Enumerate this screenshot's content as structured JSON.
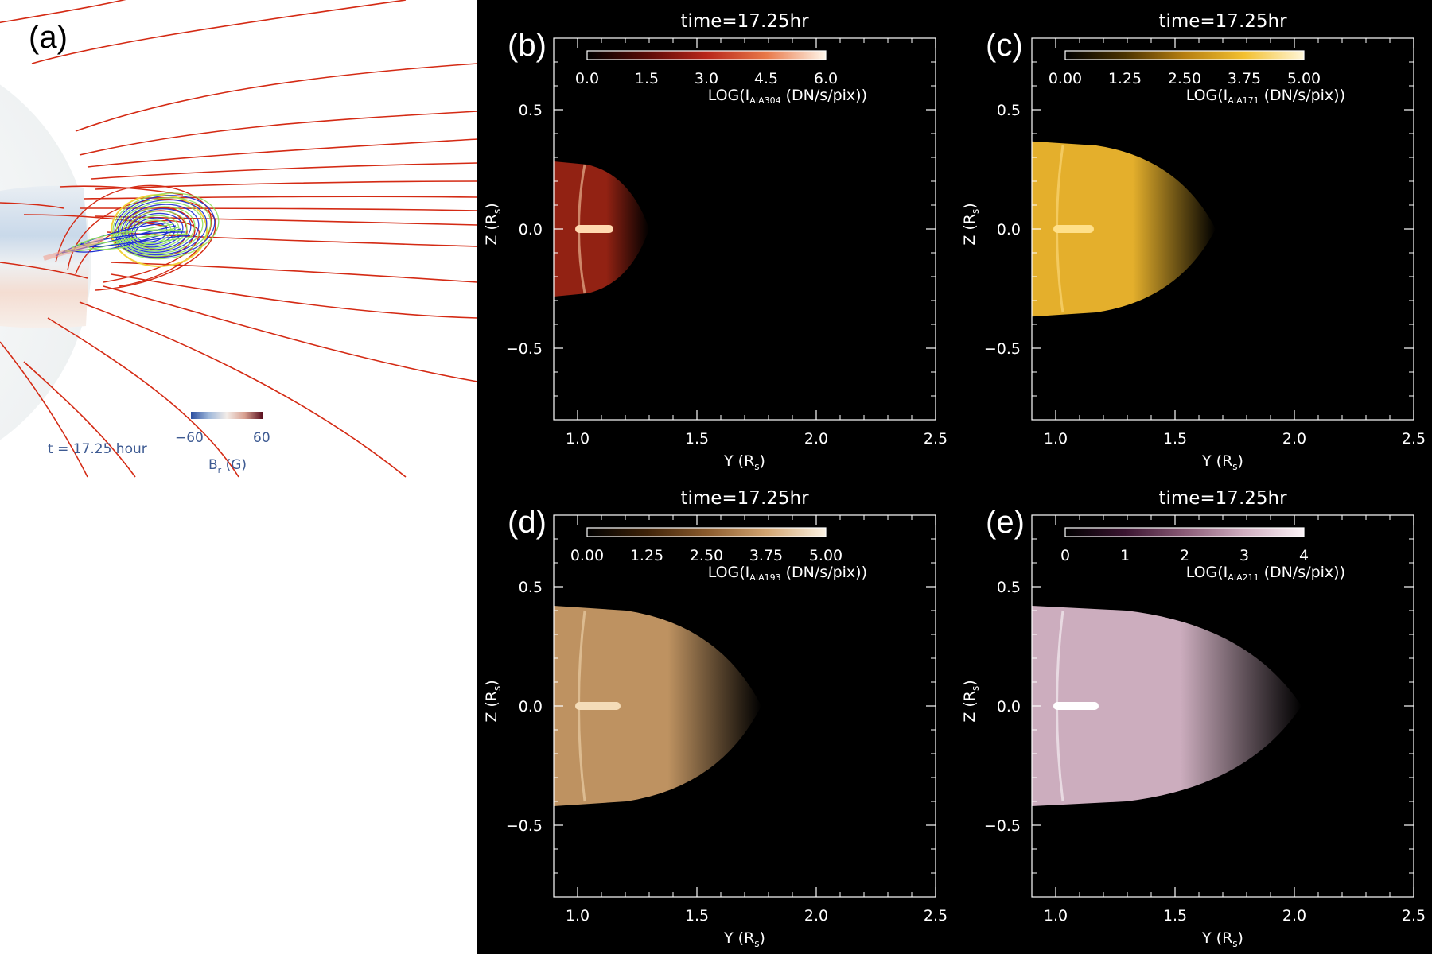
{
  "panel_a": {
    "label": "(a)",
    "time_text": "t = 17.25 hour",
    "colorbar": {
      "min_label": "−60",
      "max_label": "60",
      "title": "B",
      "title_sub": "r",
      "title_unit": " (G)",
      "colors": [
        "#2c4fa0",
        "#9fb8da",
        "#f2ece8",
        "#d8a090",
        "#5a0f1e"
      ]
    },
    "fieldline_color": "#d42a14",
    "rope_colors": [
      "#1c2fd0",
      "#8de05a",
      "#f1d13a"
    ]
  },
  "panels": [
    {
      "id": "b",
      "label": "(b)",
      "title": "time=17.25hr",
      "channel": "AIA304",
      "cbar_ticks": [
        "0.0",
        "1.5",
        "3.0",
        "4.5",
        "6.0"
      ],
      "cbar_colors": [
        "#000000",
        "#5a0a06",
        "#b8261a",
        "#e87848",
        "#fff6ea"
      ],
      "emission": {
        "extent_y": 1.3,
        "halfwidth_z": 0.27,
        "core_y": 1.15,
        "peak_color": "#9a2414",
        "core_color": "#ffd9b0"
      }
    },
    {
      "id": "c",
      "label": "(c)",
      "title": "time=17.25hr",
      "channel": "AIA171",
      "cbar_ticks": [
        "0.00",
        "1.25",
        "2.50",
        "3.75",
        "5.00"
      ],
      "cbar_colors": [
        "#000000",
        "#4a3200",
        "#b67f10",
        "#f3c030",
        "#fff6d8"
      ],
      "emission": {
        "extent_y": 1.67,
        "halfwidth_z": 0.35,
        "core_y": 1.16,
        "peak_color": "#f0b82e",
        "core_color": "#ffe08a"
      }
    },
    {
      "id": "d",
      "label": "(d)",
      "title": "time=17.25hr",
      "channel": "AIA193",
      "cbar_ticks": [
        "0.00",
        "1.25",
        "2.50",
        "3.75",
        "5.00"
      ],
      "cbar_colors": [
        "#000000",
        "#3e2208",
        "#8a5a2c",
        "#d2a470",
        "#fbf2e2"
      ],
      "emission": {
        "extent_y": 1.77,
        "halfwidth_z": 0.4,
        "core_y": 1.18,
        "peak_color": "#c89a66",
        "core_color": "#f4dcb8"
      }
    },
    {
      "id": "e",
      "label": "(e)",
      "title": "time=17.25hr",
      "channel": "AIA211",
      "cbar_ticks": [
        "0",
        "1",
        "2",
        "3",
        "4"
      ],
      "cbar_colors": [
        "#000000",
        "#3a1430",
        "#8a5a76",
        "#d0aec0",
        "#fdf4f8"
      ],
      "emission": {
        "extent_y": 2.03,
        "halfwidth_z": 0.4,
        "core_y": 1.18,
        "peak_color": "#d7b6c8",
        "core_color": "#ffffff"
      }
    }
  ],
  "axes": {
    "xlabel": "Y (R",
    "xlabel_sub": "s",
    "xlabel_end": ")",
    "ylabel": "Z (R",
    "ylabel_sub": "s",
    "ylabel_end": ")",
    "xlim": [
      0.9,
      2.5
    ],
    "ylim": [
      -0.8,
      0.8
    ],
    "xticks": [
      1.0,
      1.5,
      2.0,
      2.5
    ],
    "xtick_labels": [
      "1.0",
      "1.5",
      "2.0",
      "2.5"
    ],
    "yticks": [
      0.5,
      0.0,
      -0.5
    ],
    "ytick_labels": [
      "0.5",
      "0.0",
      "−0.5"
    ],
    "cbar_title_prefix": "LOG(I",
    "cbar_title_suffix": " (DN/s/pix))"
  },
  "chart_data": [
    {
      "type": "heatmap",
      "title": "time=17.25hr",
      "panel": "(b)",
      "xlabel": "Y (Rs)",
      "ylabel": "Z (Rs)",
      "xlim": [
        0.9,
        2.5
      ],
      "ylim": [
        -0.8,
        0.8
      ],
      "colorbar_label": "LOG(I AIA304 (DN/s/pix))",
      "colorbar_range": [
        0.0,
        6.0
      ]
    },
    {
      "type": "heatmap",
      "title": "time=17.25hr",
      "panel": "(c)",
      "xlabel": "Y (Rs)",
      "ylabel": "Z (Rs)",
      "xlim": [
        0.9,
        2.5
      ],
      "ylim": [
        -0.8,
        0.8
      ],
      "colorbar_label": "LOG(I AIA171 (DN/s/pix))",
      "colorbar_range": [
        0.0,
        5.0
      ]
    },
    {
      "type": "heatmap",
      "title": "time=17.25hr",
      "panel": "(d)",
      "xlabel": "Y (Rs)",
      "ylabel": "Z (Rs)",
      "xlim": [
        0.9,
        2.5
      ],
      "ylim": [
        -0.8,
        0.8
      ],
      "colorbar_label": "LOG(I AIA193 (DN/s/pix))",
      "colorbar_range": [
        0.0,
        5.0
      ]
    },
    {
      "type": "heatmap",
      "title": "time=17.25hr",
      "panel": "(e)",
      "xlabel": "Y (Rs)",
      "ylabel": "Z (Rs)",
      "xlim": [
        0.9,
        2.5
      ],
      "ylim": [
        -0.8,
        0.8
      ],
      "colorbar_label": "LOG(I AIA211 (DN/s/pix))",
      "colorbar_range": [
        0,
        4
      ]
    }
  ]
}
